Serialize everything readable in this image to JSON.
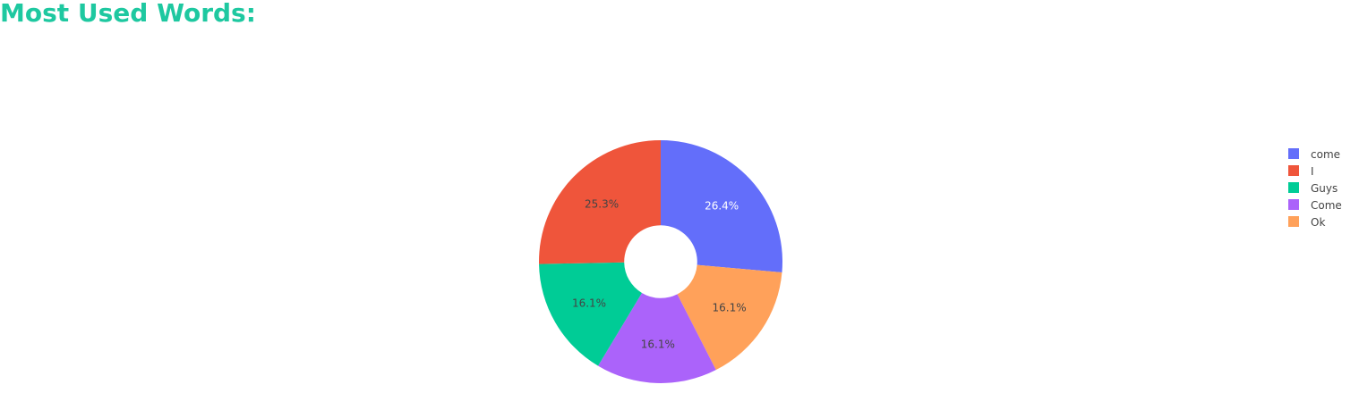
{
  "page": {
    "title": "Most Used Words:",
    "title_color": "#1ec8a0"
  },
  "chart_data": {
    "type": "pie",
    "hole": 0.3,
    "sort": "descending",
    "direction": "clockwise",
    "labels": [
      "come",
      "I",
      "Guys",
      "Come",
      "Ok"
    ],
    "values": [
      26.4,
      25.3,
      16.1,
      16.1,
      16.1
    ],
    "percent_labels": [
      "26.4%",
      "25.3%",
      "16.1%",
      "16.1%",
      "16.1%"
    ],
    "colors": [
      "#636efa",
      "#ef553b",
      "#00cc96",
      "#ab63fa",
      "#ffa15a"
    ],
    "label_colors": [
      "#ffffff",
      "#444444",
      "#444444",
      "#444444",
      "#444444"
    ],
    "slice_order_clockwise": [
      "come",
      "Ok",
      "Come",
      "Guys",
      "I"
    ],
    "legend": {
      "placement": "right",
      "entries": [
        "come",
        "I",
        "Guys",
        "Come",
        "Ok"
      ]
    }
  }
}
